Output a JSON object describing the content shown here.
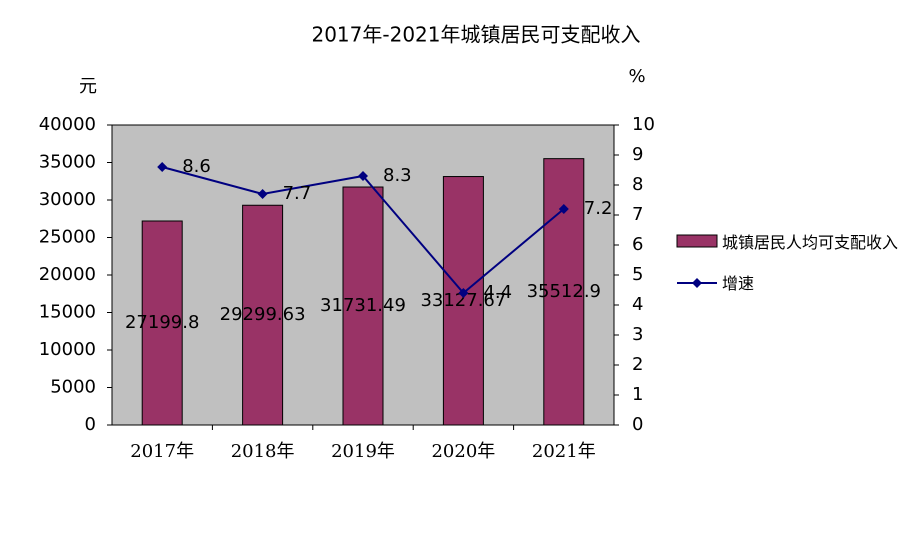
{
  "chart_data": {
    "type": "bar",
    "title": "2017年-2021年城镇居民可支配收入",
    "y_label": "元",
    "y2_label": "%",
    "categories": [
      "2017年",
      "2018年",
      "2019年",
      "2020年",
      "2021年"
    ],
    "series": [
      {
        "name": "城镇居民人均可支配收入",
        "type": "bar",
        "color": "#993366",
        "values": [
          27199.8,
          29299.63,
          31731.49,
          33127.67,
          35512.9
        ]
      },
      {
        "name": "增速",
        "type": "line",
        "axis": "y2",
        "color": "#000080",
        "values": [
          8.6,
          7.7,
          8.3,
          4.4,
          7.2
        ]
      }
    ],
    "ylim": [
      0,
      40000
    ],
    "yticks": [
      0,
      5000,
      10000,
      15000,
      20000,
      25000,
      30000,
      35000,
      40000
    ],
    "y2lim": [
      0,
      10
    ],
    "y2ticks": [
      0,
      1,
      2,
      3,
      4,
      5,
      6,
      7,
      8,
      9,
      10
    ],
    "plot_background": "#c0c0c0",
    "legend": "right"
  }
}
